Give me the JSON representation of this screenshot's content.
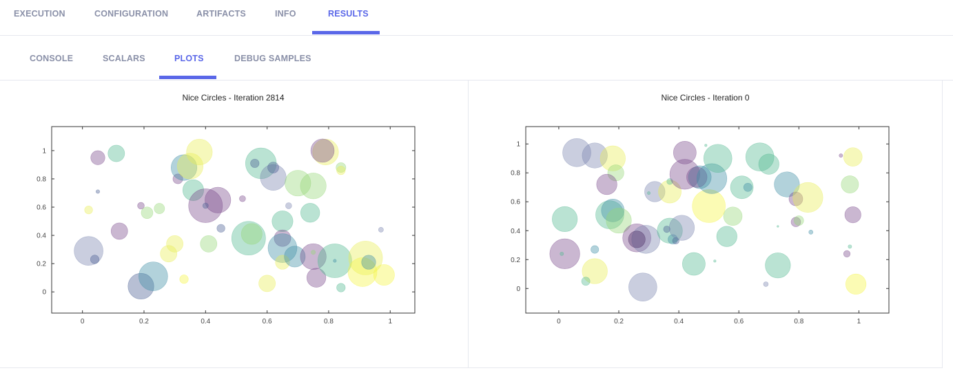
{
  "tabs": [
    {
      "label": "EXECUTION",
      "active": false
    },
    {
      "label": "CONFIGURATION",
      "active": false
    },
    {
      "label": "ARTIFACTS",
      "active": false
    },
    {
      "label": "INFO",
      "active": false
    },
    {
      "label": "RESULTS",
      "active": true
    }
  ],
  "subtabs": [
    {
      "label": "CONSOLE",
      "active": false
    },
    {
      "label": "SCALARS",
      "active": false
    },
    {
      "label": "PLOTS",
      "active": true
    },
    {
      "label": "DEBUG SAMPLES",
      "active": false
    }
  ],
  "colors": {
    "accent": "#5a67e8"
  },
  "chart_data": [
    {
      "type": "scatter",
      "title": "Nice Circles - Iteration 2814",
      "xlim": [
        -0.1,
        1.08
      ],
      "ylim": [
        -0.15,
        1.17
      ],
      "xticks": [
        0,
        0.2,
        0.4,
        0.6,
        0.8,
        1
      ],
      "yticks": [
        0,
        0.2,
        0.4,
        0.6,
        0.8,
        1
      ],
      "tick_labels_x": [
        "0",
        "0.2",
        "0.4",
        "0.6",
        "0.8",
        "1"
      ],
      "tick_labels_y": [
        "0",
        "0.2",
        "0.4",
        "0.6",
        "0.8",
        "1"
      ],
      "points": [
        {
          "x": 0.02,
          "y": 0.29,
          "r": 0.047,
          "c": "#7a85b0"
        },
        {
          "x": 0.04,
          "y": 0.23,
          "r": 0.014,
          "c": "#4a5f93"
        },
        {
          "x": 0.05,
          "y": 0.71,
          "r": 0.006,
          "c": "#4a5f93"
        },
        {
          "x": 0.02,
          "y": 0.58,
          "r": 0.013,
          "c": "#e9ee55"
        },
        {
          "x": 0.12,
          "y": 0.43,
          "r": 0.027,
          "c": "#7b4a8d"
        },
        {
          "x": 0.11,
          "y": 0.98,
          "r": 0.027,
          "c": "#53b892"
        },
        {
          "x": 0.05,
          "y": 0.95,
          "r": 0.023,
          "c": "#7b4a8d"
        },
        {
          "x": 0.19,
          "y": 0.61,
          "r": 0.011,
          "c": "#7b4a8d"
        },
        {
          "x": 0.21,
          "y": 0.56,
          "r": 0.019,
          "c": "#97d879"
        },
        {
          "x": 0.25,
          "y": 0.59,
          "r": 0.017,
          "c": "#97d879"
        },
        {
          "x": 0.19,
          "y": 0.04,
          "r": 0.042,
          "c": "#4a5f93"
        },
        {
          "x": 0.23,
          "y": 0.11,
          "r": 0.047,
          "c": "#3f8ea6"
        },
        {
          "x": 0.28,
          "y": 0.27,
          "r": 0.027,
          "c": "#e9ee55"
        },
        {
          "x": 0.3,
          "y": 0.34,
          "r": 0.027,
          "c": "#e9ee55"
        },
        {
          "x": 0.33,
          "y": 0.09,
          "r": 0.014,
          "c": "#f5f544"
        },
        {
          "x": 0.31,
          "y": 0.8,
          "r": 0.016,
          "c": "#7b4a8d"
        },
        {
          "x": 0.33,
          "y": 0.88,
          "r": 0.042,
          "c": "#3f8ea6"
        },
        {
          "x": 0.35,
          "y": 0.89,
          "r": 0.042,
          "c": "#e9ee55"
        },
        {
          "x": 0.36,
          "y": 0.72,
          "r": 0.034,
          "c": "#53b892"
        },
        {
          "x": 0.38,
          "y": 0.99,
          "r": 0.042,
          "c": "#e9ee55"
        },
        {
          "x": 0.4,
          "y": 0.61,
          "r": 0.055,
          "c": "#7b4a8d"
        },
        {
          "x": 0.44,
          "y": 0.65,
          "r": 0.042,
          "c": "#7b4a8d"
        },
        {
          "x": 0.4,
          "y": 0.61,
          "r": 0.009,
          "c": "#4a5f93"
        },
        {
          "x": 0.41,
          "y": 0.34,
          "r": 0.027,
          "c": "#97d879"
        },
        {
          "x": 0.45,
          "y": 0.45,
          "r": 0.013,
          "c": "#4a5f93"
        },
        {
          "x": 0.52,
          "y": 0.66,
          "r": 0.01,
          "c": "#7b4a8d"
        },
        {
          "x": 0.54,
          "y": 0.38,
          "r": 0.055,
          "c": "#53b892"
        },
        {
          "x": 0.55,
          "y": 0.41,
          "r": 0.034,
          "c": "#97d879"
        },
        {
          "x": 0.58,
          "y": 0.91,
          "r": 0.05,
          "c": "#53b892"
        },
        {
          "x": 0.56,
          "y": 0.91,
          "r": 0.014,
          "c": "#4a5f93"
        },
        {
          "x": 0.62,
          "y": 0.81,
          "r": 0.042,
          "c": "#7a85b0"
        },
        {
          "x": 0.62,
          "y": 0.88,
          "r": 0.018,
          "c": "#4a5f93"
        },
        {
          "x": 0.67,
          "y": 0.61,
          "r": 0.01,
          "c": "#7a85b0"
        },
        {
          "x": 0.65,
          "y": 0.5,
          "r": 0.034,
          "c": "#53b892"
        },
        {
          "x": 0.65,
          "y": 0.38,
          "r": 0.027,
          "c": "#7b4a8d"
        },
        {
          "x": 0.65,
          "y": 0.31,
          "r": 0.047,
          "c": "#3f8ea6"
        },
        {
          "x": 0.65,
          "y": 0.21,
          "r": 0.023,
          "c": "#e9ee55"
        },
        {
          "x": 0.6,
          "y": 0.06,
          "r": 0.027,
          "c": "#e9ee55"
        },
        {
          "x": 0.69,
          "y": 0.25,
          "r": 0.034,
          "c": "#3f8ea6"
        },
        {
          "x": 0.7,
          "y": 0.77,
          "r": 0.042,
          "c": "#97d879"
        },
        {
          "x": 0.75,
          "y": 0.75,
          "r": 0.042,
          "c": "#97d879"
        },
        {
          "x": 0.74,
          "y": 0.56,
          "r": 0.031,
          "c": "#53b892"
        },
        {
          "x": 0.75,
          "y": 0.25,
          "r": 0.042,
          "c": "#7b4a8d"
        },
        {
          "x": 0.76,
          "y": 0.1,
          "r": 0.031,
          "c": "#7b4a8d"
        },
        {
          "x": 0.75,
          "y": 0.28,
          "r": 0.007,
          "c": "#97d879"
        },
        {
          "x": 0.79,
          "y": 0.99,
          "r": 0.042,
          "c": "#e9ee55"
        },
        {
          "x": 0.78,
          "y": 1.0,
          "r": 0.038,
          "c": "#7b4a8d"
        },
        {
          "x": 0.82,
          "y": 0.22,
          "r": 0.055,
          "c": "#53b892"
        },
        {
          "x": 0.84,
          "y": 0.88,
          "r": 0.016,
          "c": "#97d879"
        },
        {
          "x": 0.84,
          "y": 0.86,
          "r": 0.014,
          "c": "#e9ee55"
        },
        {
          "x": 0.84,
          "y": 0.03,
          "r": 0.014,
          "c": "#53b892"
        },
        {
          "x": 0.92,
          "y": 0.24,
          "r": 0.055,
          "c": "#e9ee55"
        },
        {
          "x": 0.91,
          "y": 0.14,
          "r": 0.047,
          "c": "#f5f544"
        },
        {
          "x": 0.93,
          "y": 0.21,
          "r": 0.023,
          "c": "#3f8ea6"
        },
        {
          "x": 0.97,
          "y": 0.44,
          "r": 0.008,
          "c": "#7a85b0"
        },
        {
          "x": 0.98,
          "y": 0.12,
          "r": 0.034,
          "c": "#f5f544"
        },
        {
          "x": 0.82,
          "y": 0.22,
          "r": 0.005,
          "c": "#3f8ea6"
        }
      ]
    },
    {
      "type": "scatter",
      "title": "Nice Circles - Iteration 0",
      "xlim": [
        -0.11,
        1.1
      ],
      "ylim": [
        -0.17,
        1.12
      ],
      "xticks": [
        0,
        0.2,
        0.4,
        0.6,
        0.8,
        1
      ],
      "yticks": [
        0,
        0.2,
        0.4,
        0.6,
        0.8,
        1
      ],
      "tick_labels_x": [
        "0",
        "0.2",
        "0.4",
        "0.6",
        "0.8",
        "1"
      ],
      "tick_labels_y": [
        "0",
        "0.2",
        "0.4",
        "0.6",
        "0.8",
        "1"
      ],
      "points": [
        {
          "x": 0.06,
          "y": 0.94,
          "r": 0.047,
          "c": "#7a85b0"
        },
        {
          "x": 0.12,
          "y": 0.92,
          "r": 0.042,
          "c": "#7a85b0"
        },
        {
          "x": 0.18,
          "y": 0.9,
          "r": 0.042,
          "c": "#e9ee55"
        },
        {
          "x": 0.19,
          "y": 0.8,
          "r": 0.027,
          "c": "#97d879"
        },
        {
          "x": 0.16,
          "y": 0.72,
          "r": 0.034,
          "c": "#7b4a8d"
        },
        {
          "x": 0.02,
          "y": 0.48,
          "r": 0.042,
          "c": "#53b892"
        },
        {
          "x": 0.02,
          "y": 0.24,
          "r": 0.05,
          "c": "#7b4a8d"
        },
        {
          "x": 0.01,
          "y": 0.24,
          "r": 0.006,
          "c": "#53b892"
        },
        {
          "x": 0.12,
          "y": 0.12,
          "r": 0.042,
          "c": "#e9ee55"
        },
        {
          "x": 0.09,
          "y": 0.05,
          "r": 0.014,
          "c": "#53b892"
        },
        {
          "x": 0.12,
          "y": 0.27,
          "r": 0.013,
          "c": "#3f8ea6"
        },
        {
          "x": 0.17,
          "y": 0.51,
          "r": 0.047,
          "c": "#53b892"
        },
        {
          "x": 0.18,
          "y": 0.54,
          "r": 0.038,
          "c": "#3f8ea6"
        },
        {
          "x": 0.2,
          "y": 0.47,
          "r": 0.042,
          "c": "#97d879"
        },
        {
          "x": 0.26,
          "y": 0.35,
          "r": 0.047,
          "c": "#7b4a8d"
        },
        {
          "x": 0.29,
          "y": 0.34,
          "r": 0.047,
          "c": "#7a85b0"
        },
        {
          "x": 0.26,
          "y": 0.34,
          "r": 0.028,
          "c": "#4a2b63"
        },
        {
          "x": 0.28,
          "y": 0.01,
          "r": 0.047,
          "c": "#7a85b0"
        },
        {
          "x": 0.32,
          "y": 0.67,
          "r": 0.034,
          "c": "#7a85b0"
        },
        {
          "x": 0.3,
          "y": 0.66,
          "r": 0.005,
          "c": "#53b892"
        },
        {
          "x": 0.37,
          "y": 0.4,
          "r": 0.042,
          "c": "#53b892"
        },
        {
          "x": 0.38,
          "y": 0.34,
          "r": 0.016,
          "c": "#3f8ea6"
        },
        {
          "x": 0.39,
          "y": 0.33,
          "r": 0.011,
          "c": "#4a5f93"
        },
        {
          "x": 0.36,
          "y": 0.41,
          "r": 0.011,
          "c": "#4a5f93"
        },
        {
          "x": 0.37,
          "y": 0.67,
          "r": 0.038,
          "c": "#e9ee55"
        },
        {
          "x": 0.37,
          "y": 0.74,
          "r": 0.01,
          "c": "#53b892"
        },
        {
          "x": 0.42,
          "y": 0.94,
          "r": 0.038,
          "c": "#7b4a8d"
        },
        {
          "x": 0.42,
          "y": 0.79,
          "r": 0.05,
          "c": "#7b4a8d"
        },
        {
          "x": 0.41,
          "y": 0.42,
          "r": 0.042,
          "c": "#7a85b0"
        },
        {
          "x": 0.45,
          "y": 0.17,
          "r": 0.038,
          "c": "#53b892"
        },
        {
          "x": 0.47,
          "y": 0.77,
          "r": 0.038,
          "c": "#3f8ea6"
        },
        {
          "x": 0.46,
          "y": 0.77,
          "r": 0.034,
          "c": "#7b4a8d"
        },
        {
          "x": 0.5,
          "y": 0.57,
          "r": 0.055,
          "c": "#f5f544"
        },
        {
          "x": 0.51,
          "y": 0.76,
          "r": 0.05,
          "c": "#3f8ea6"
        },
        {
          "x": 0.49,
          "y": 0.99,
          "r": 0.004,
          "c": "#53b892"
        },
        {
          "x": 0.53,
          "y": 0.9,
          "r": 0.047,
          "c": "#53b892"
        },
        {
          "x": 0.52,
          "y": 0.19,
          "r": 0.004,
          "c": "#53b892"
        },
        {
          "x": 0.56,
          "y": 0.36,
          "r": 0.034,
          "c": "#53b892"
        },
        {
          "x": 0.58,
          "y": 0.5,
          "r": 0.031,
          "c": "#97d879"
        },
        {
          "x": 0.61,
          "y": 0.7,
          "r": 0.038,
          "c": "#53b892"
        },
        {
          "x": 0.63,
          "y": 0.7,
          "r": 0.014,
          "c": "#3f8ea6"
        },
        {
          "x": 0.67,
          "y": 0.91,
          "r": 0.047,
          "c": "#53b892"
        },
        {
          "x": 0.7,
          "y": 0.86,
          "r": 0.034,
          "c": "#53b892"
        },
        {
          "x": 0.69,
          "y": 0.03,
          "r": 0.008,
          "c": "#7a85b0"
        },
        {
          "x": 0.73,
          "y": 0.16,
          "r": 0.042,
          "c": "#53b892"
        },
        {
          "x": 0.73,
          "y": 0.43,
          "r": 0.003,
          "c": "#53b892"
        },
        {
          "x": 0.76,
          "y": 0.72,
          "r": 0.042,
          "c": "#3f8ea6"
        },
        {
          "x": 0.79,
          "y": 0.62,
          "r": 0.023,
          "c": "#7b4a8d"
        },
        {
          "x": 0.79,
          "y": 0.46,
          "r": 0.016,
          "c": "#7b4a8d"
        },
        {
          "x": 0.8,
          "y": 0.47,
          "r": 0.016,
          "c": "#97d879"
        },
        {
          "x": 0.84,
          "y": 0.39,
          "r": 0.007,
          "c": "#3f8ea6"
        },
        {
          "x": 0.83,
          "y": 0.63,
          "r": 0.05,
          "c": "#e9ee55"
        },
        {
          "x": 0.94,
          "y": 0.92,
          "r": 0.006,
          "c": "#7b4a8d"
        },
        {
          "x": 0.98,
          "y": 0.91,
          "r": 0.031,
          "c": "#e9ee55"
        },
        {
          "x": 0.97,
          "y": 0.72,
          "r": 0.029,
          "c": "#97d879"
        },
        {
          "x": 0.98,
          "y": 0.51,
          "r": 0.027,
          "c": "#7b4a8d"
        },
        {
          "x": 0.97,
          "y": 0.29,
          "r": 0.006,
          "c": "#53b892"
        },
        {
          "x": 0.96,
          "y": 0.24,
          "r": 0.011,
          "c": "#7b4a8d"
        },
        {
          "x": 0.99,
          "y": 0.03,
          "r": 0.034,
          "c": "#f5f544"
        }
      ]
    }
  ]
}
